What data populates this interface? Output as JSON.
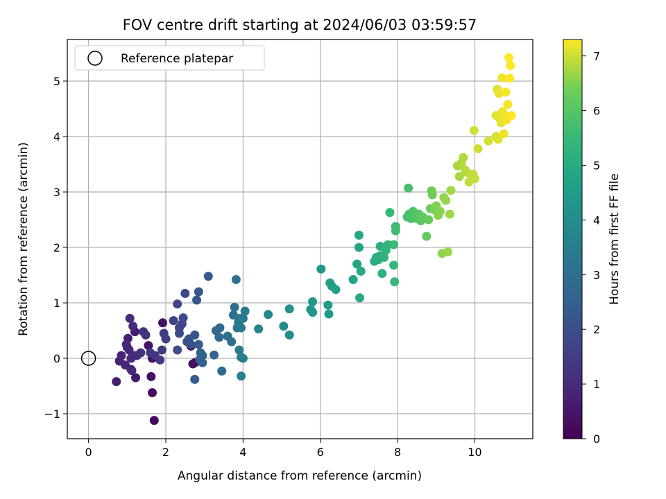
{
  "chart_data": {
    "type": "scatter",
    "title": "FOV centre drift starting at 2024/06/03 03:59:57",
    "xlabel": "Angular distance from reference (arcmin)",
    "ylabel": "Rotation from reference (arcmin)",
    "xlim": [
      -0.55,
      11.5
    ],
    "ylim": [
      -1.45,
      5.75
    ],
    "xticks": [
      0,
      2,
      4,
      6,
      8,
      10
    ],
    "yticks": [
      -1,
      0,
      1,
      2,
      3,
      4,
      5
    ],
    "xtick_labels": [
      "0",
      "2",
      "4",
      "6",
      "8",
      "10"
    ],
    "ytick_labels": [
      "−1",
      "0",
      "1",
      "2",
      "3",
      "4",
      "5"
    ],
    "grid": true,
    "legend": {
      "placement": "top-left",
      "entries": [
        "Reference platepar"
      ]
    },
    "reference_point": {
      "x": 0,
      "y": 0
    },
    "colorbar": {
      "label": "Hours from first FF file",
      "colormap": "viridis",
      "range": [
        0,
        7.3
      ],
      "ticks": [
        0,
        1,
        2,
        3,
        4,
        5,
        6,
        7
      ],
      "tick_labels": [
        "0",
        "1",
        "2",
        "3",
        "4",
        "5",
        "6",
        "7"
      ]
    },
    "points": [
      {
        "x": 1.7,
        "y": -1.12,
        "c": 0.2
      },
      {
        "x": 1.65,
        "y": -0.62,
        "c": 0.25
      },
      {
        "x": 1.62,
        "y": -0.33,
        "c": 0.3
      },
      {
        "x": 1.65,
        "y": 0.0,
        "c": 0.4
      },
      {
        "x": 1.92,
        "y": 0.64,
        "c": 0.35
      },
      {
        "x": 2.7,
        "y": -0.1,
        "c": 0.3
      },
      {
        "x": 2.65,
        "y": 0.22,
        "c": 0.3
      },
      {
        "x": 2.75,
        "y": -0.08,
        "c": 0.35
      },
      {
        "x": 1.55,
        "y": 0.23,
        "c": 0.45
      },
      {
        "x": 1.22,
        "y": -0.35,
        "c": 0.55
      },
      {
        "x": 0.72,
        "y": -0.42,
        "c": 0.7
      },
      {
        "x": 1.1,
        "y": -0.2,
        "c": 0.65
      },
      {
        "x": 1.2,
        "y": 0.48,
        "c": 0.6
      },
      {
        "x": 1.02,
        "y": 0.36,
        "c": 0.7
      },
      {
        "x": 0.8,
        "y": -0.05,
        "c": 0.75
      },
      {
        "x": 0.85,
        "y": 0.05,
        "c": 0.8
      },
      {
        "x": 0.95,
        "y": -0.12,
        "c": 0.85
      },
      {
        "x": 0.98,
        "y": 0.25,
        "c": 0.9
      },
      {
        "x": 1.05,
        "y": 0.15,
        "c": 0.95
      },
      {
        "x": 1.1,
        "y": 0.0,
        "c": 1.0
      },
      {
        "x": 1.15,
        "y": 0.58,
        "c": 1.0
      },
      {
        "x": 1.07,
        "y": 0.72,
        "c": 1.05
      },
      {
        "x": 1.25,
        "y": 0.05,
        "c": 1.1
      },
      {
        "x": 1.35,
        "y": 0.1,
        "c": 1.15
      },
      {
        "x": 1.42,
        "y": 0.48,
        "c": 1.2
      },
      {
        "x": 1.48,
        "y": 0.42,
        "c": 1.25
      },
      {
        "x": 1.6,
        "y": 0.1,
        "c": 1.3
      },
      {
        "x": 1.72,
        "y": 0.05,
        "c": 1.35
      },
      {
        "x": 1.85,
        "y": -0.03,
        "c": 1.4
      },
      {
        "x": 1.9,
        "y": 0.15,
        "c": 1.45
      },
      {
        "x": 1.2,
        "y": 0.05,
        "c": 1.05
      },
      {
        "x": 1.0,
        "y": 0.2,
        "c": 0.9
      },
      {
        "x": 1.12,
        "y": -0.22,
        "c": 0.95
      },
      {
        "x": 1.95,
        "y": 0.45,
        "c": 1.5
      },
      {
        "x": 2.0,
        "y": 0.35,
        "c": 1.55
      },
      {
        "x": 2.2,
        "y": 0.68,
        "c": 1.6
      },
      {
        "x": 2.35,
        "y": 0.55,
        "c": 1.65
      },
      {
        "x": 2.42,
        "y": 0.62,
        "c": 1.7
      },
      {
        "x": 2.3,
        "y": 0.98,
        "c": 1.75
      },
      {
        "x": 2.5,
        "y": 1.17,
        "c": 1.8
      },
      {
        "x": 2.45,
        "y": 0.73,
        "c": 1.85
      },
      {
        "x": 2.35,
        "y": 0.45,
        "c": 1.9
      },
      {
        "x": 2.3,
        "y": 0.15,
        "c": 1.95
      },
      {
        "x": 2.55,
        "y": 0.3,
        "c": 2.0
      },
      {
        "x": 2.6,
        "y": 0.35,
        "c": 2.05
      },
      {
        "x": 2.65,
        "y": 0.25,
        "c": 2.1
      },
      {
        "x": 2.75,
        "y": 0.42,
        "c": 2.15
      },
      {
        "x": 2.8,
        "y": 1.05,
        "c": 2.2
      },
      {
        "x": 2.85,
        "y": 1.2,
        "c": 2.25
      },
      {
        "x": 3.1,
        "y": 1.48,
        "c": 2.3
      },
      {
        "x": 2.75,
        "y": -0.38,
        "c": 2.35
      },
      {
        "x": 2.85,
        "y": 0.25,
        "c": 2.4
      },
      {
        "x": 2.9,
        "y": 0.1,
        "c": 2.45
      },
      {
        "x": 2.88,
        "y": -0.02,
        "c": 2.5
      },
      {
        "x": 2.95,
        "y": -0.08,
        "c": 2.55
      },
      {
        "x": 2.95,
        "y": 0.05,
        "c": 2.6
      },
      {
        "x": 3.25,
        "y": 0.06,
        "c": 2.65
      },
      {
        "x": 3.3,
        "y": 0.5,
        "c": 2.7
      },
      {
        "x": 3.4,
        "y": 0.55,
        "c": 2.75
      },
      {
        "x": 3.38,
        "y": 0.38,
        "c": 2.8
      },
      {
        "x": 3.45,
        "y": -0.23,
        "c": 2.85
      },
      {
        "x": 3.6,
        "y": 0.4,
        "c": 2.9
      },
      {
        "x": 3.7,
        "y": 0.3,
        "c": 2.95
      },
      {
        "x": 3.75,
        "y": 0.78,
        "c": 3.0
      },
      {
        "x": 3.78,
        "y": 0.92,
        "c": 3.05
      },
      {
        "x": 3.82,
        "y": 1.42,
        "c": 3.1
      },
      {
        "x": 3.85,
        "y": 0.55,
        "c": 3.15
      },
      {
        "x": 3.88,
        "y": 0.65,
        "c": 3.2
      },
      {
        "x": 3.92,
        "y": 0.72,
        "c": 3.25
      },
      {
        "x": 3.95,
        "y": 0.55,
        "c": 3.3
      },
      {
        "x": 4.0,
        "y": 0.72,
        "c": 3.35
      },
      {
        "x": 4.05,
        "y": 0.85,
        "c": 3.4
      },
      {
        "x": 3.9,
        "y": 0.15,
        "c": 3.45
      },
      {
        "x": 3.95,
        "y": 0.02,
        "c": 3.5
      },
      {
        "x": 4.0,
        "y": 0.0,
        "c": 3.55
      },
      {
        "x": 3.95,
        "y": -0.32,
        "c": 3.6
      },
      {
        "x": 4.4,
        "y": 0.53,
        "c": 3.7
      },
      {
        "x": 4.65,
        "y": 0.79,
        "c": 3.8
      },
      {
        "x": 5.05,
        "y": 0.58,
        "c": 3.9
      },
      {
        "x": 5.2,
        "y": 0.42,
        "c": 4.0
      },
      {
        "x": 5.2,
        "y": 0.89,
        "c": 4.1
      },
      {
        "x": 5.75,
        "y": 0.88,
        "c": 4.2
      },
      {
        "x": 5.8,
        "y": 0.83,
        "c": 4.3
      },
      {
        "x": 5.8,
        "y": 1.02,
        "c": 4.35
      },
      {
        "x": 6.02,
        "y": 1.61,
        "c": 4.4
      },
      {
        "x": 6.2,
        "y": 0.96,
        "c": 4.45
      },
      {
        "x": 6.22,
        "y": 0.8,
        "c": 4.5
      },
      {
        "x": 6.25,
        "y": 1.36,
        "c": 4.55
      },
      {
        "x": 6.3,
        "y": 1.3,
        "c": 4.6
      },
      {
        "x": 6.4,
        "y": 1.24,
        "c": 4.65
      },
      {
        "x": 6.85,
        "y": 1.42,
        "c": 4.7
      },
      {
        "x": 6.95,
        "y": 1.7,
        "c": 4.75
      },
      {
        "x": 7.0,
        "y": 2.0,
        "c": 4.8
      },
      {
        "x": 7.0,
        "y": 2.22,
        "c": 4.85
      },
      {
        "x": 7.02,
        "y": 1.09,
        "c": 4.9
      },
      {
        "x": 7.05,
        "y": 1.57,
        "c": 4.95
      },
      {
        "x": 7.4,
        "y": 1.75,
        "c": 5.0
      },
      {
        "x": 7.45,
        "y": 1.82,
        "c": 5.05
      },
      {
        "x": 7.5,
        "y": 1.78,
        "c": 5.1
      },
      {
        "x": 7.55,
        "y": 1.85,
        "c": 5.15
      },
      {
        "x": 7.55,
        "y": 2.02,
        "c": 5.2
      },
      {
        "x": 7.6,
        "y": 1.53,
        "c": 5.25
      },
      {
        "x": 7.65,
        "y": 1.82,
        "c": 5.3
      },
      {
        "x": 7.7,
        "y": 1.95,
        "c": 5.35
      },
      {
        "x": 7.75,
        "y": 2.05,
        "c": 5.4
      },
      {
        "x": 7.8,
        "y": 2.63,
        "c": 5.45
      },
      {
        "x": 7.9,
        "y": 1.68,
        "c": 5.5
      },
      {
        "x": 7.92,
        "y": 1.38,
        "c": 5.5
      },
      {
        "x": 7.9,
        "y": 2.05,
        "c": 5.55
      },
      {
        "x": 7.95,
        "y": 2.38,
        "c": 5.6
      },
      {
        "x": 7.95,
        "y": 2.3,
        "c": 5.65
      },
      {
        "x": 8.25,
        "y": 2.55,
        "c": 5.7
      },
      {
        "x": 8.3,
        "y": 2.6,
        "c": 5.75
      },
      {
        "x": 8.28,
        "y": 3.07,
        "c": 5.8
      },
      {
        "x": 8.35,
        "y": 2.52,
        "c": 5.85
      },
      {
        "x": 8.4,
        "y": 2.65,
        "c": 5.9
      },
      {
        "x": 8.45,
        "y": 2.55,
        "c": 5.95
      },
      {
        "x": 8.5,
        "y": 2.52,
        "c": 6.0
      },
      {
        "x": 8.55,
        "y": 2.6,
        "c": 6.05
      },
      {
        "x": 8.6,
        "y": 2.48,
        "c": 6.1
      },
      {
        "x": 8.65,
        "y": 2.55,
        "c": 6.15
      },
      {
        "x": 8.75,
        "y": 2.2,
        "c": 6.2
      },
      {
        "x": 8.8,
        "y": 2.5,
        "c": 6.25
      },
      {
        "x": 8.85,
        "y": 2.7,
        "c": 6.3
      },
      {
        "x": 8.9,
        "y": 2.95,
        "c": 6.35
      },
      {
        "x": 8.88,
        "y": 3.02,
        "c": 6.4
      },
      {
        "x": 8.95,
        "y": 2.68,
        "c": 6.45
      },
      {
        "x": 9.0,
        "y": 2.75,
        "c": 6.5
      },
      {
        "x": 9.05,
        "y": 2.58,
        "c": 6.55
      },
      {
        "x": 9.1,
        "y": 2.65,
        "c": 6.55
      },
      {
        "x": 9.15,
        "y": 1.89,
        "c": 6.6
      },
      {
        "x": 9.2,
        "y": 2.9,
        "c": 6.6
      },
      {
        "x": 9.25,
        "y": 2.85,
        "c": 6.65
      },
      {
        "x": 9.3,
        "y": 1.92,
        "c": 6.65
      },
      {
        "x": 9.35,
        "y": 2.6,
        "c": 6.7
      },
      {
        "x": 9.38,
        "y": 3.03,
        "c": 6.7
      },
      {
        "x": 9.55,
        "y": 3.47,
        "c": 6.75
      },
      {
        "x": 9.6,
        "y": 3.28,
        "c": 6.75
      },
      {
        "x": 9.65,
        "y": 3.52,
        "c": 6.8
      },
      {
        "x": 9.7,
        "y": 3.62,
        "c": 6.8
      },
      {
        "x": 9.75,
        "y": 3.4,
        "c": 6.85
      },
      {
        "x": 9.8,
        "y": 3.35,
        "c": 6.85
      },
      {
        "x": 9.85,
        "y": 3.18,
        "c": 6.9
      },
      {
        "x": 9.9,
        "y": 3.3,
        "c": 6.9
      },
      {
        "x": 9.95,
        "y": 3.32,
        "c": 6.95
      },
      {
        "x": 10.0,
        "y": 3.24,
        "c": 6.95
      },
      {
        "x": 9.98,
        "y": 4.11,
        "c": 7.0
      },
      {
        "x": 10.08,
        "y": 3.78,
        "c": 7.0
      },
      {
        "x": 10.35,
        "y": 3.92,
        "c": 7.05
      },
      {
        "x": 10.55,
        "y": 4.0,
        "c": 7.05
      },
      {
        "x": 10.55,
        "y": 4.38,
        "c": 7.1
      },
      {
        "x": 10.58,
        "y": 4.85,
        "c": 7.1
      },
      {
        "x": 10.6,
        "y": 3.95,
        "c": 7.1
      },
      {
        "x": 10.62,
        "y": 4.78,
        "c": 7.15
      },
      {
        "x": 10.65,
        "y": 4.32,
        "c": 7.15
      },
      {
        "x": 10.68,
        "y": 4.25,
        "c": 7.15
      },
      {
        "x": 10.7,
        "y": 5.06,
        "c": 7.2
      },
      {
        "x": 10.72,
        "y": 4.45,
        "c": 7.2
      },
      {
        "x": 10.75,
        "y": 4.05,
        "c": 7.2
      },
      {
        "x": 10.78,
        "y": 4.38,
        "c": 7.2
      },
      {
        "x": 10.8,
        "y": 4.8,
        "c": 7.25
      },
      {
        "x": 10.82,
        "y": 4.3,
        "c": 7.25
      },
      {
        "x": 10.85,
        "y": 4.58,
        "c": 7.25
      },
      {
        "x": 10.88,
        "y": 5.42,
        "c": 7.3
      },
      {
        "x": 10.9,
        "y": 5.05,
        "c": 7.3
      },
      {
        "x": 10.92,
        "y": 5.28,
        "c": 7.3
      },
      {
        "x": 10.95,
        "y": 4.38,
        "c": 7.3
      }
    ]
  }
}
